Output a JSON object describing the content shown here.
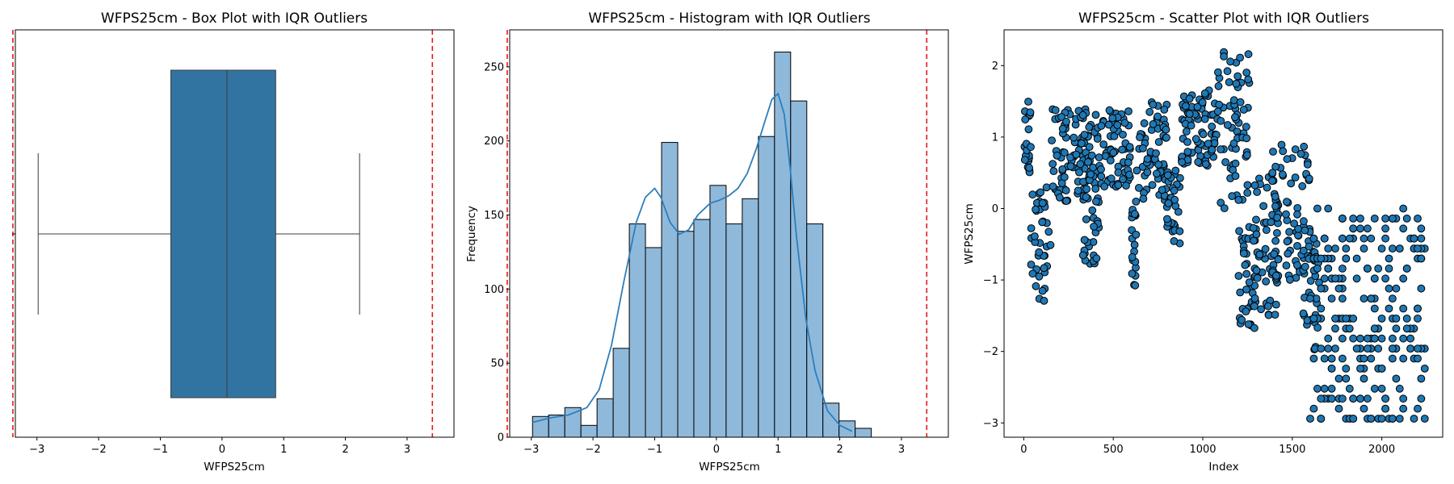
{
  "chart_data": [
    {
      "type": "box",
      "title": "WFPS25cm - Box Plot with IQR Outliers",
      "xlabel": "WFPS25cm",
      "ylabel": "",
      "xlim": [
        -3.35,
        3.76
      ],
      "xticks": [
        -3,
        -2,
        -1,
        0,
        1,
        2,
        3
      ],
      "box": {
        "whisker_low": -2.98,
        "q1": -0.83,
        "median": 0.08,
        "q3": 0.87,
        "whisker_high": 2.23,
        "color": "#3274a1"
      },
      "outlier_bounds": {
        "lower": -3.39,
        "upper": 3.41,
        "color": "#e41a1c",
        "style": "dashed"
      }
    },
    {
      "type": "histogram",
      "title": "WFPS25cm - Histogram with IQR Outliers",
      "xlabel": "WFPS25cm",
      "ylabel": "Frequency",
      "xlim": [
        -3.35,
        3.76
      ],
      "ylim": [
        0,
        275
      ],
      "xticks": [
        -3,
        -2,
        -1,
        0,
        1,
        2,
        3
      ],
      "yticks": [
        0,
        50,
        100,
        150,
        200,
        250
      ],
      "bin_start": -2.98,
      "bin_width": 0.2615,
      "counts": [
        14,
        15,
        20,
        8,
        26,
        60,
        144,
        128,
        199,
        139,
        147,
        170,
        144,
        161,
        203,
        260,
        227,
        144,
        23,
        11,
        6
      ],
      "kde_x": [
        -2.98,
        -2.7,
        -2.4,
        -2.1,
        -1.9,
        -1.7,
        -1.5,
        -1.3,
        -1.15,
        -1.0,
        -0.9,
        -0.75,
        -0.6,
        -0.45,
        -0.3,
        -0.1,
        0.05,
        0.2,
        0.35,
        0.5,
        0.65,
        0.8,
        0.9,
        1.0,
        1.1,
        1.2,
        1.3,
        1.45,
        1.6,
        1.8,
        2.0,
        2.2
      ],
      "kde_y": [
        10,
        13,
        15,
        20,
        32,
        62,
        105,
        145,
        162,
        168,
        162,
        145,
        137,
        140,
        150,
        158,
        160,
        163,
        168,
        178,
        195,
        215,
        228,
        232,
        218,
        180,
        135,
        80,
        45,
        18,
        8,
        4
      ],
      "bar_color": "#8fb9db",
      "line_color": "#2e7ebb",
      "outlier_bounds": {
        "lower": -3.39,
        "upper": 3.41,
        "color": "#e41a1c",
        "style": "dashed"
      }
    },
    {
      "type": "scatter",
      "title": "WFPS25cm - Scatter Plot with IQR Outliers",
      "xlabel": "Index",
      "ylabel": "WFPS25cm",
      "xlim": [
        -110,
        2340
      ],
      "ylim": [
        -3.2,
        2.5
      ],
      "xticks": [
        0,
        500,
        1000,
        1500,
        2000
      ],
      "yticks": [
        -3,
        -2,
        -1,
        0,
        1,
        2
      ],
      "n_points": 2240,
      "marker_color": "#1f77b4",
      "segments": [
        {
          "x": [
            0,
            40
          ],
          "y": [
            0.3,
            1.5
          ]
        },
        {
          "x": [
            40,
            150
          ],
          "y": [
            -1.3,
            0.3
          ]
        },
        {
          "x": [
            150,
            420
          ],
          "y": [
            0.1,
            1.4
          ]
        },
        {
          "x": [
            330,
            420
          ],
          "y": [
            -0.85,
            0.6
          ]
        },
        {
          "x": [
            420,
            600
          ],
          "y": [
            0.3,
            1.4
          ]
        },
        {
          "x": [
            600,
            630
          ],
          "y": [
            -1.1,
            0.1
          ]
        },
        {
          "x": [
            630,
            800
          ],
          "y": [
            0.1,
            1.5
          ]
        },
        {
          "x": [
            800,
            880
          ],
          "y": [
            -0.5,
            0.6
          ]
        },
        {
          "x": [
            880,
            1080
          ],
          "y": [
            0.6,
            1.7
          ]
        },
        {
          "x": [
            1080,
            1260
          ],
          "y": [
            0.0,
            2.25
          ]
        },
        {
          "x": [
            1200,
            1300
          ],
          "y": [
            -1.75,
            -0.2
          ]
        },
        {
          "x": [
            1280,
            1420
          ],
          "y": [
            -1.5,
            0.5
          ]
        },
        {
          "x": [
            1380,
            1600
          ],
          "y": [
            -1.0,
            0.9
          ]
        },
        {
          "x": [
            1560,
            1650
          ],
          "y": [
            -2.0,
            -0.3
          ]
        },
        {
          "x": [
            1600,
            2240
          ],
          "y": [
            -3.0,
            0.0
          ]
        }
      ]
    }
  ]
}
